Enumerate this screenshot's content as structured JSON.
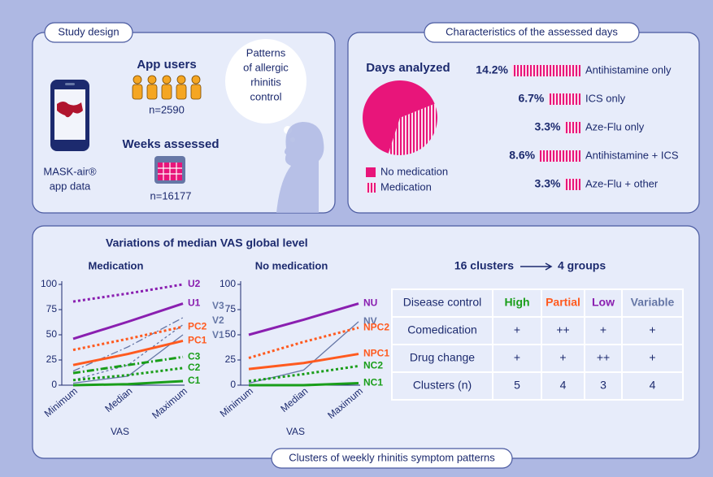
{
  "study_design": {
    "title": "Study design",
    "app_users": "App users",
    "users_n": "n=2590",
    "weeks": "Weeks assessed",
    "weeks_n": "n=16177",
    "app_data": [
      "MASK-air®",
      "app data"
    ],
    "thought": [
      "Patterns",
      "of allergic",
      "rhinitis",
      "control"
    ]
  },
  "days": {
    "title": "Characteristics of the assessed days",
    "pie": {
      "type": "pie",
      "title": "Days analyzed",
      "categories": [
        "No medication",
        "Medication"
      ],
      "values": [
        63.9,
        36.1
      ],
      "colors": [
        "#e8157a",
        "#e8157a"
      ],
      "patterns": [
        "solid",
        "striped"
      ]
    },
    "bars": {
      "type": "bar",
      "categories": [
        "Antihistamine only",
        "ICS only",
        "Aze-Flu only",
        "Antihistamine + ICS",
        "Aze-Flu + other"
      ],
      "values": [
        14.2,
        6.7,
        3.3,
        8.6,
        3.3
      ],
      "value_labels": [
        "14.2%",
        "6.7%",
        "3.3%",
        "8.6%",
        "3.3%"
      ],
      "color": "#e8157a"
    }
  },
  "clusters": {
    "title": "Clusters of weekly rhinitis symptom patterns",
    "heading": "Variations of median VAS global level",
    "charts": [
      {
        "type": "line",
        "title": "Medication",
        "categories": [
          "Minimum",
          "Median",
          "Maximum"
        ],
        "xlabel": "VAS",
        "ylim": [
          0,
          100
        ],
        "yticks": [
          0,
          25,
          50,
          75,
          100
        ],
        "series": [
          {
            "name": "U2",
            "color": "#8a1fb0",
            "style": "dotted",
            "values": [
              83,
              91,
              100
            ]
          },
          {
            "name": "U1",
            "color": "#8a1fb0",
            "style": "solid",
            "values": [
              46,
              63,
              81
            ]
          },
          {
            "name": "V3",
            "color": "#6677a6",
            "style": "thin-dashdot",
            "values": [
              14,
              38,
              67
            ]
          },
          {
            "name": "V2",
            "color": "#6677a6",
            "style": "thin-dotted",
            "values": [
              5,
              20,
              60
            ]
          },
          {
            "name": "V1",
            "color": "#6677a6",
            "style": "thin-solid",
            "values": [
              2,
              9,
              50
            ]
          },
          {
            "name": "PC2",
            "color": "#ff5a1f",
            "style": "dotted",
            "values": [
              35,
              46,
              58
            ]
          },
          {
            "name": "PC1",
            "color": "#ff5a1f",
            "style": "solid",
            "values": [
              20,
              31,
              44
            ]
          },
          {
            "name": "C3",
            "color": "#1a9e1a",
            "style": "dashdot",
            "values": [
              12,
              20,
              28
            ]
          },
          {
            "name": "C2",
            "color": "#1a9e1a",
            "style": "dotted",
            "values": [
              5,
              10,
              17
            ]
          },
          {
            "name": "C1",
            "color": "#1a9e1a",
            "style": "solid",
            "values": [
              0,
              1,
              4
            ]
          }
        ]
      },
      {
        "type": "line",
        "title": "No medication",
        "categories": [
          "Minimum",
          "Median",
          "Maximum"
        ],
        "xlabel": "VAS",
        "ylim": [
          0,
          100
        ],
        "yticks": [
          0,
          25,
          50,
          75,
          100
        ],
        "series": [
          {
            "name": "NU",
            "color": "#8a1fb0",
            "style": "solid",
            "values": [
              50,
              65,
              81
            ]
          },
          {
            "name": "NV",
            "color": "#6677a6",
            "style": "thin-solid",
            "values": [
              2,
              15,
              63
            ]
          },
          {
            "name": "NPC2",
            "color": "#ff5a1f",
            "style": "dotted",
            "values": [
              27,
              43,
              57
            ]
          },
          {
            "name": "NPC1",
            "color": "#ff5a1f",
            "style": "solid",
            "values": [
              16,
              22,
              31
            ]
          },
          {
            "name": "NC2",
            "color": "#1a9e1a",
            "style": "dotted",
            "values": [
              4,
              11,
              19
            ]
          },
          {
            "name": "NC1",
            "color": "#1a9e1a",
            "style": "solid",
            "values": [
              0,
              0,
              2
            ]
          }
        ]
      }
    ],
    "groups_from": "16 clusters",
    "groups_to": "4 groups",
    "table": {
      "header": [
        "Disease control",
        "High",
        "Partial",
        "Low",
        "Variable"
      ],
      "header_colors": [
        "#1c2a6e",
        "#1a9e1a",
        "#ff5a1f",
        "#8a1fb0",
        "#6677a6"
      ],
      "rows": [
        [
          "Comedication",
          "+",
          "++",
          "+",
          "+"
        ],
        [
          "Drug change",
          "+",
          "+",
          "++",
          "+"
        ],
        [
          "Clusters (n)",
          "5",
          "4",
          "3",
          "4"
        ]
      ]
    }
  }
}
